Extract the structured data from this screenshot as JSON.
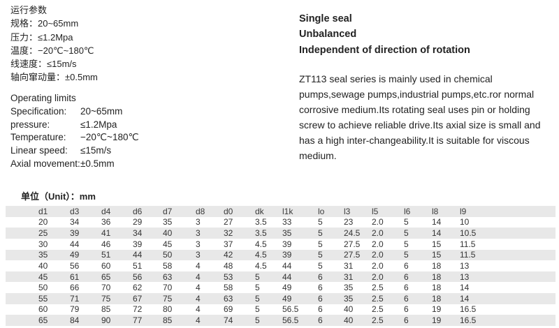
{
  "cn_params": {
    "title": "运行参数",
    "lines": [
      "规格：20~65mm",
      "压力：≤1.2Mpa",
      "温度：−20℃~180℃",
      "线速度：≤15m/s",
      "轴向窜动量：±0.5mm"
    ]
  },
  "operating_limits": {
    "title": "Operating limits",
    "rows": [
      {
        "label": "Specification:",
        "value": "20~65mm"
      },
      {
        "label": "pressure:",
        "value": "≤1.2Mpa"
      },
      {
        "label": "Temperature:",
        "value": "−20℃~180℃"
      },
      {
        "label": "Linear speed:",
        "value": "≤15m/s"
      },
      {
        "label": "Axial movement:",
        "value": "±0.5mm"
      }
    ]
  },
  "features": {
    "headings": [
      "Single seal",
      "Unbalanced",
      "Independent of direction of rotation"
    ],
    "description": "ZT113 seal series is mainly used in chemical pumps,sewage pumps,industrial pumps,etc.ror normal corrosive medium.Its rotating seal uses pin or holding screw to achieve reliable drive.Its axial size is small and has a high inter-changeability.It is suitable for viscous medium."
  },
  "table": {
    "unit_label": "单位（Unit）：mm",
    "columns": [
      "d1",
      "d3",
      "d4",
      "d6",
      "d7",
      "d8",
      "d0",
      "dk",
      "l1k",
      "lo",
      "l3",
      "l5",
      "l6",
      "l8",
      "l9"
    ],
    "rows": [
      [
        "20",
        "34",
        "36",
        "29",
        "35",
        "3",
        "27",
        "3.5",
        "33",
        "5",
        "23",
        "2.0",
        "5",
        "14",
        "10"
      ],
      [
        "25",
        "39",
        "41",
        "34",
        "40",
        "3",
        "32",
        "3.5",
        "35",
        "5",
        "24.5",
        "2.0",
        "5",
        "14",
        "10.5"
      ],
      [
        "30",
        "44",
        "46",
        "39",
        "45",
        "3",
        "37",
        "4.5",
        "39",
        "5",
        "27.5",
        "2.0",
        "5",
        "15",
        "11.5"
      ],
      [
        "35",
        "49",
        "51",
        "44",
        "50",
        "3",
        "42",
        "4.5",
        "39",
        "5",
        "27.5",
        "2.0",
        "5",
        "15",
        "11.5"
      ],
      [
        "40",
        "56",
        "60",
        "51",
        "58",
        "4",
        "48",
        "4.5",
        "44",
        "5",
        "31",
        "2.0",
        "6",
        "18",
        "13"
      ],
      [
        "45",
        "61",
        "65",
        "56",
        "63",
        "4",
        "53",
        "5",
        "44",
        "6",
        "31",
        "2.0",
        "6",
        "18",
        "13"
      ],
      [
        "50",
        "66",
        "70",
        "62",
        "70",
        "4",
        "58",
        "5",
        "49",
        "6",
        "35",
        "2.5",
        "6",
        "18",
        "14"
      ],
      [
        "55",
        "71",
        "75",
        "67",
        "75",
        "4",
        "63",
        "5",
        "49",
        "6",
        "35",
        "2.5",
        "6",
        "18",
        "14"
      ],
      [
        "60",
        "79",
        "85",
        "72",
        "80",
        "4",
        "69",
        "5",
        "56.5",
        "6",
        "40",
        "2.5",
        "6",
        "19",
        "16.5"
      ],
      [
        "65",
        "84",
        "90",
        "77",
        "85",
        "4",
        "74",
        "5",
        "56.5",
        "6",
        "40",
        "2.5",
        "6",
        "19",
        "16.5"
      ]
    ],
    "colors": {
      "band": "#e8e8e8",
      "text": "#222222"
    }
  }
}
